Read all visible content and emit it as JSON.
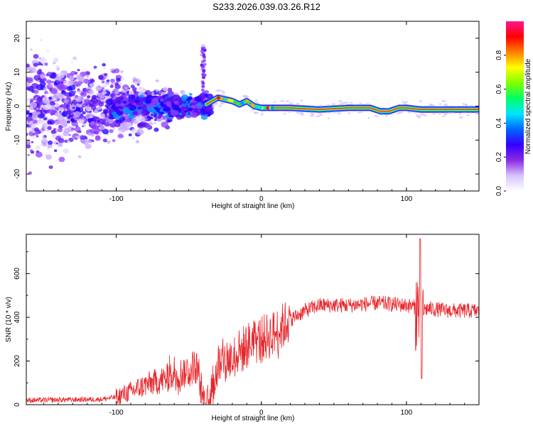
{
  "title": "S233.2026.039.03.26.R12",
  "chart_data": [
    {
      "type": "heatmap",
      "name": "spectrogram",
      "xlabel": "Height of straight line (km)",
      "ylabel": "Frequency (Hz)",
      "xlim": [
        -162,
        150
      ],
      "ylim": [
        -25,
        25
      ],
      "xticks": [
        -100,
        0,
        100
      ],
      "xtick_labels": [
        "-100",
        "0",
        "100"
      ],
      "yticks": [
        -20,
        -10,
        0,
        10,
        20
      ],
      "ytick_labels": [
        "-20",
        "-10",
        "0",
        "10",
        "20"
      ],
      "colorbar": {
        "label": "Normalized spectral amplitude",
        "range": [
          0,
          1
        ],
        "ticks": [
          0.0,
          0.2,
          0.4,
          0.6,
          0.8
        ],
        "tick_labels": [
          "0.0",
          "0.2",
          "0.4",
          "0.6",
          "0.8"
        ],
        "colors": [
          "#ffffff",
          "#d7c2ff",
          "#8a2be2",
          "#3300ff",
          "#0066ff",
          "#00e5ff",
          "#00ff66",
          "#80ff00",
          "#ffff00",
          "#ff8000",
          "#ff0000",
          "#ff1493"
        ]
      },
      "ridge": {
        "description_values_x_km": [
          -38,
          -30,
          -20,
          -15,
          -10,
          -5,
          0,
          20,
          40,
          60,
          75,
          82,
          88,
          95,
          100,
          110,
          120,
          150
        ],
        "frequency_hz": [
          0.5,
          2.5,
          1.5,
          0.5,
          1.5,
          0.0,
          -0.5,
          -0.5,
          -1.0,
          -0.5,
          -0.5,
          -1.5,
          -1.5,
          -0.5,
          -0.5,
          -1.0,
          -1.0,
          -1.0
        ]
      }
    },
    {
      "type": "line",
      "name": "snr",
      "xlabel": "Height of straight line (km)",
      "ylabel": "SNR (10 * v/v)",
      "xlim": [
        -162,
        150
      ],
      "ylim": [
        0,
        780
      ],
      "xticks": [
        -100,
        0,
        100
      ],
      "xtick_labels": [
        "-100",
        "0",
        "100"
      ],
      "yticks": [
        0,
        200,
        400,
        600
      ],
      "ytick_labels": [
        "0",
        "200",
        "400",
        "600"
      ],
      "color": "#e8252a",
      "trend": {
        "x": [
          -162,
          -110,
          -100,
          -90,
          -80,
          -70,
          -60,
          -50,
          -45,
          -40,
          -35,
          -30,
          -25,
          -20,
          -15,
          -10,
          -5,
          0,
          10,
          20,
          30,
          40,
          60,
          80,
          100,
          105,
          110,
          115,
          130,
          150
        ],
        "y": [
          20,
          25,
          35,
          60,
          90,
          110,
          130,
          160,
          180,
          20,
          30,
          180,
          200,
          210,
          240,
          270,
          290,
          300,
          330,
          390,
          430,
          455,
          455,
          465,
          455,
          450,
          430,
          440,
          430,
          430
        ]
      }
    }
  ]
}
